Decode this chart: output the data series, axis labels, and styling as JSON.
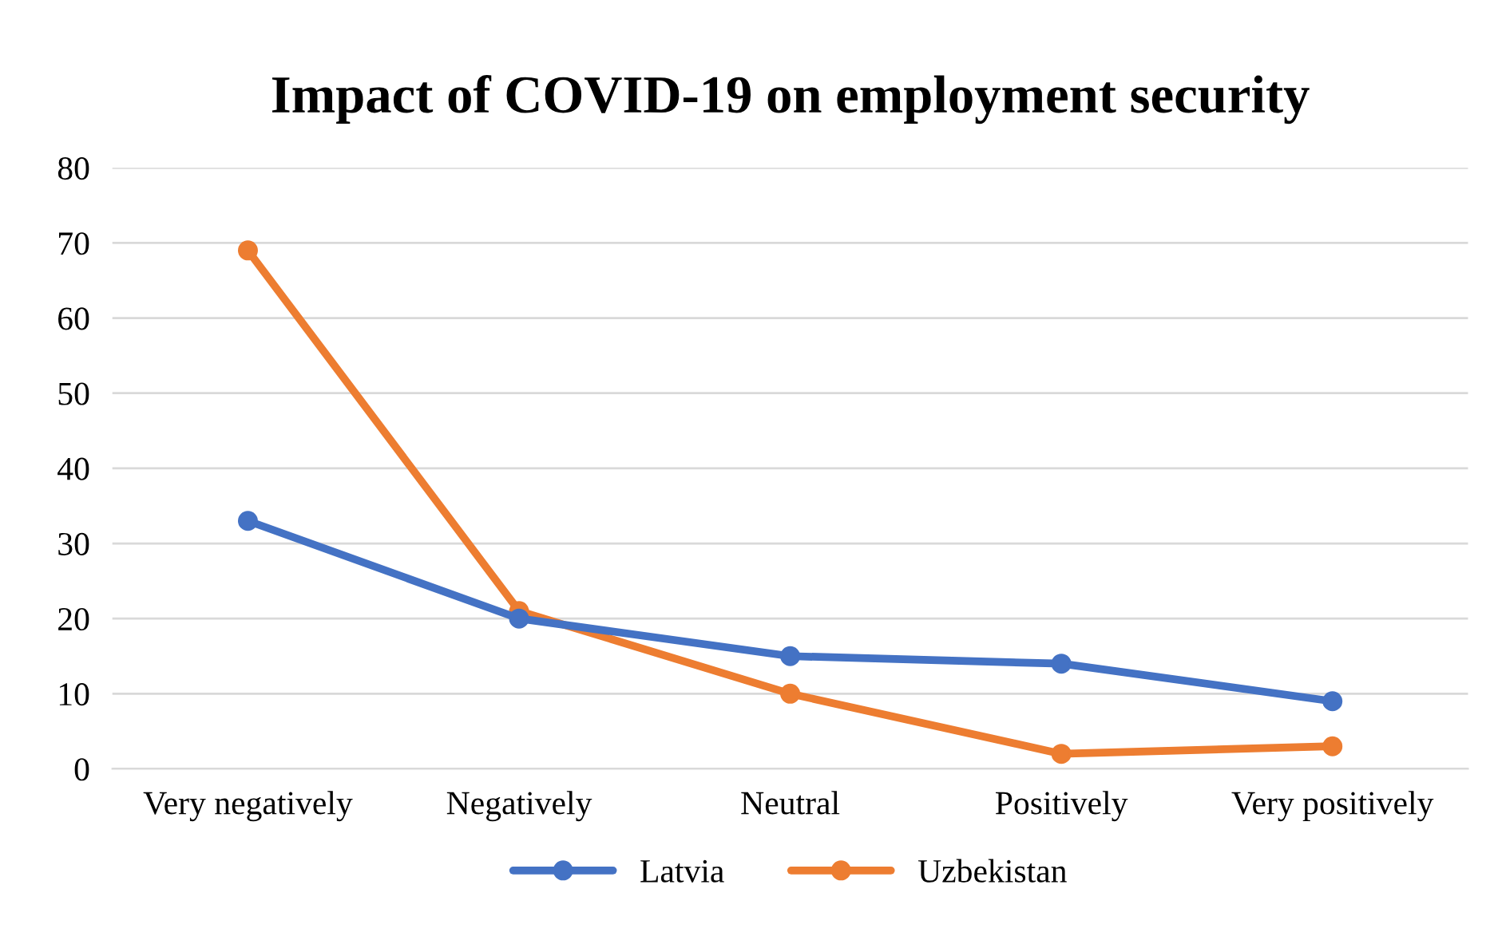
{
  "chart_data": {
    "type": "line",
    "title": "Impact of COVID-19 on employment security",
    "categories": [
      "Very negatively",
      "Negatively",
      "Neutral",
      "Positively",
      "Very positively"
    ],
    "series": [
      {
        "name": "Latvia",
        "color": "#4472c4",
        "values": [
          33,
          20,
          15,
          14,
          9
        ]
      },
      {
        "name": "Uzbekistan",
        "color": "#ed7d31",
        "values": [
          69,
          21,
          10,
          2,
          3
        ]
      }
    ],
    "ylim": [
      0,
      80
    ],
    "yticks": [
      0,
      10,
      20,
      30,
      40,
      50,
      60,
      70,
      80
    ],
    "grid": "y",
    "legend": "bottom",
    "marker": "circle",
    "line_style": "solid"
  }
}
